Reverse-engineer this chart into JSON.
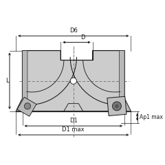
{
  "bg_color": "#ffffff",
  "body_color": "#cccccc",
  "body_color2": "#b8b8b8",
  "line_color": "#1a1a1a",
  "dim_color": "#1a1a1a",
  "dashed_color": "#666666",
  "insert_color": "#c5c5c5",
  "labels": {
    "D6": "D6",
    "D": "D",
    "D1": "D1",
    "D1max": "D1 max",
    "L": "L",
    "Ap1max": "Ap1 max"
  },
  "figsize": [
    2.4,
    2.4
  ],
  "dpi": 100
}
